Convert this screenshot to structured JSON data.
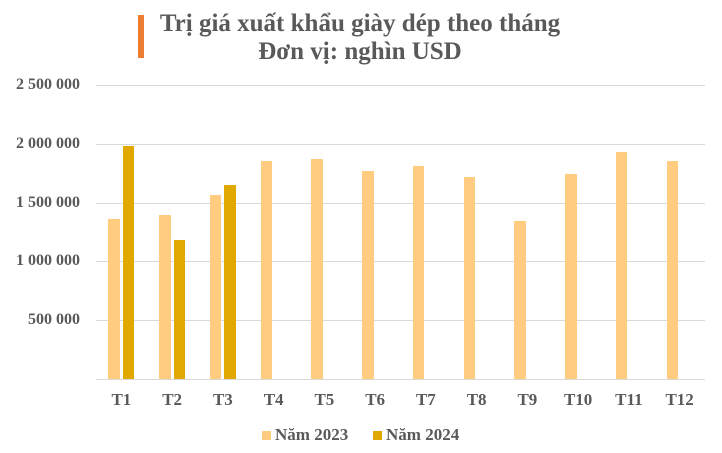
{
  "header": {
    "title_line1": "Trị giá xuất khẩu giày dép theo tháng",
    "title_line2": "Đơn vị: nghìn USD",
    "accent_color": "#ED7D31"
  },
  "chart_data": {
    "type": "bar",
    "title": "Trị giá xuất khẩu giày dép theo tháng",
    "subtitle": "Đơn vị: nghìn USD",
    "xlabel": "",
    "ylabel": "",
    "categories": [
      "T1",
      "T2",
      "T3",
      "T4",
      "T5",
      "T6",
      "T7",
      "T8",
      "T9",
      "T10",
      "T11",
      "T12"
    ],
    "series": [
      {
        "name": "Năm 2023",
        "color": "#FFCC80",
        "values": [
          1363000,
          1397000,
          1567000,
          1857000,
          1874000,
          1772000,
          1814000,
          1721000,
          1340000,
          1746000,
          1933000,
          1857000
        ]
      },
      {
        "name": "Năm 2024",
        "color": "#E0A800",
        "values": [
          1979000,
          1178000,
          1647000,
          null,
          null,
          null,
          null,
          null,
          null,
          null,
          null,
          null
        ]
      }
    ],
    "ylim": [
      0,
      2500000
    ],
    "yticks": [
      500000,
      1000000,
      1500000,
      2000000,
      2500000
    ],
    "ytick_labels": [
      "500 000",
      "1 000 000",
      "1 500 000",
      "2 000 000",
      "2 500 000"
    ],
    "grid": true,
    "legend_position": "bottom"
  }
}
